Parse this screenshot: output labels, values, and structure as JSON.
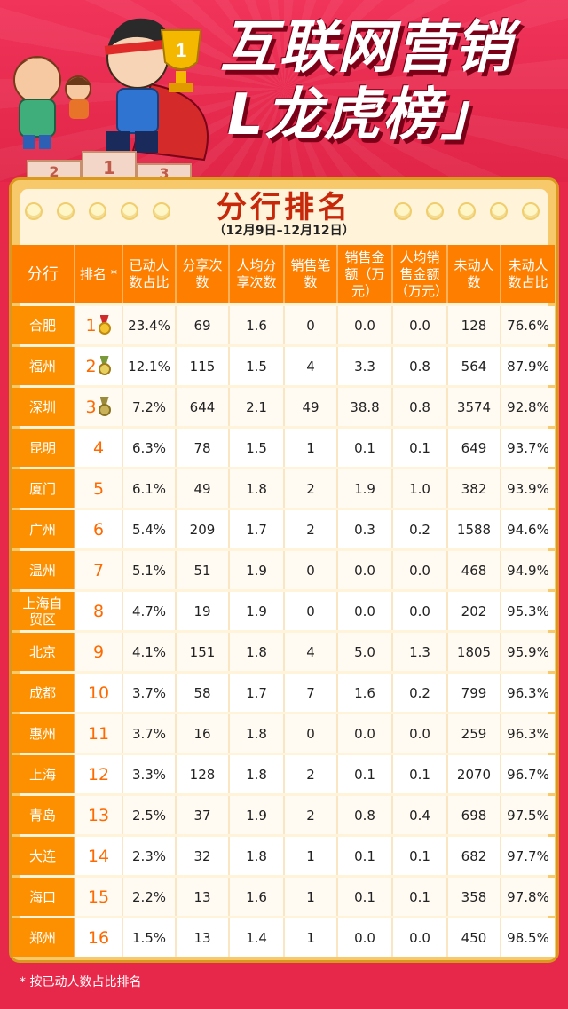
{
  "hero": {
    "title_line1": "互联网营销",
    "title_line2": "L龙虎榜」",
    "podium": [
      "2",
      "1",
      "3"
    ]
  },
  "section": {
    "title": "分行排名",
    "date_range": "（12月9日–12月12日）"
  },
  "table": {
    "headers": {
      "branch": "分行",
      "rank": "排名 *",
      "active_ratio": "已动人数占比",
      "shares": "分享次数",
      "avg_shares": "人均分享次数",
      "sales_count": "销售笔数",
      "sales_amount": "销售金额（万元）",
      "avg_sales": "人均销售金额（万元）",
      "inactive": "未动人数",
      "inactive_ratio": "未动人数占比"
    },
    "rows": [
      {
        "branch": "合肥",
        "rank": "1",
        "medal": "gold",
        "active_ratio": "23.4%",
        "shares": "69",
        "avg_shares": "1.6",
        "sales_count": "0",
        "sales_amount": "0.0",
        "avg_sales": "0.0",
        "inactive": "128",
        "inactive_ratio": "76.6%"
      },
      {
        "branch": "福州",
        "rank": "2",
        "medal": "silver",
        "active_ratio": "12.1%",
        "shares": "115",
        "avg_shares": "1.5",
        "sales_count": "4",
        "sales_amount": "3.3",
        "avg_sales": "0.8",
        "inactive": "564",
        "inactive_ratio": "87.9%"
      },
      {
        "branch": "深圳",
        "rank": "3",
        "medal": "bronze",
        "active_ratio": "7.2%",
        "shares": "644",
        "avg_shares": "2.1",
        "sales_count": "49",
        "sales_amount": "38.8",
        "avg_sales": "0.8",
        "inactive": "3574",
        "inactive_ratio": "92.8%"
      },
      {
        "branch": "昆明",
        "rank": "4",
        "medal": "",
        "active_ratio": "6.3%",
        "shares": "78",
        "avg_shares": "1.5",
        "sales_count": "1",
        "sales_amount": "0.1",
        "avg_sales": "0.1",
        "inactive": "649",
        "inactive_ratio": "93.7%"
      },
      {
        "branch": "厦门",
        "rank": "5",
        "medal": "",
        "active_ratio": "6.1%",
        "shares": "49",
        "avg_shares": "1.8",
        "sales_count": "2",
        "sales_amount": "1.9",
        "avg_sales": "1.0",
        "inactive": "382",
        "inactive_ratio": "93.9%"
      },
      {
        "branch": "广州",
        "rank": "6",
        "medal": "",
        "active_ratio": "5.4%",
        "shares": "209",
        "avg_shares": "1.7",
        "sales_count": "2",
        "sales_amount": "0.3",
        "avg_sales": "0.2",
        "inactive": "1588",
        "inactive_ratio": "94.6%"
      },
      {
        "branch": "温州",
        "rank": "7",
        "medal": "",
        "active_ratio": "5.1%",
        "shares": "51",
        "avg_shares": "1.9",
        "sales_count": "0",
        "sales_amount": "0.0",
        "avg_sales": "0.0",
        "inactive": "468",
        "inactive_ratio": "94.9%"
      },
      {
        "branch": "上海自贸区",
        "rank": "8",
        "medal": "",
        "active_ratio": "4.7%",
        "shares": "19",
        "avg_shares": "1.9",
        "sales_count": "0",
        "sales_amount": "0.0",
        "avg_sales": "0.0",
        "inactive": "202",
        "inactive_ratio": "95.3%"
      },
      {
        "branch": "北京",
        "rank": "9",
        "medal": "",
        "active_ratio": "4.1%",
        "shares": "151",
        "avg_shares": "1.8",
        "sales_count": "4",
        "sales_amount": "5.0",
        "avg_sales": "1.3",
        "inactive": "1805",
        "inactive_ratio": "95.9%"
      },
      {
        "branch": "成都",
        "rank": "10",
        "medal": "",
        "active_ratio": "3.7%",
        "shares": "58",
        "avg_shares": "1.7",
        "sales_count": "7",
        "sales_amount": "1.6",
        "avg_sales": "0.2",
        "inactive": "799",
        "inactive_ratio": "96.3%"
      },
      {
        "branch": "惠州",
        "rank": "11",
        "medal": "",
        "active_ratio": "3.7%",
        "shares": "16",
        "avg_shares": "1.8",
        "sales_count": "0",
        "sales_amount": "0.0",
        "avg_sales": "0.0",
        "inactive": "259",
        "inactive_ratio": "96.3%"
      },
      {
        "branch": "上海",
        "rank": "12",
        "medal": "",
        "active_ratio": "3.3%",
        "shares": "128",
        "avg_shares": "1.8",
        "sales_count": "2",
        "sales_amount": "0.1",
        "avg_sales": "0.1",
        "inactive": "2070",
        "inactive_ratio": "96.7%"
      },
      {
        "branch": "青岛",
        "rank": "13",
        "medal": "",
        "active_ratio": "2.5%",
        "shares": "37",
        "avg_shares": "1.9",
        "sales_count": "2",
        "sales_amount": "0.8",
        "avg_sales": "0.4",
        "inactive": "698",
        "inactive_ratio": "97.5%"
      },
      {
        "branch": "大连",
        "rank": "14",
        "medal": "",
        "active_ratio": "2.3%",
        "shares": "32",
        "avg_shares": "1.8",
        "sales_count": "1",
        "sales_amount": "0.1",
        "avg_sales": "0.1",
        "inactive": "682",
        "inactive_ratio": "97.7%"
      },
      {
        "branch": "海口",
        "rank": "15",
        "medal": "",
        "active_ratio": "2.2%",
        "shares": "13",
        "avg_shares": "1.6",
        "sales_count": "1",
        "sales_amount": "0.1",
        "avg_sales": "0.1",
        "inactive": "358",
        "inactive_ratio": "97.8%"
      },
      {
        "branch": "郑州",
        "rank": "16",
        "medal": "",
        "active_ratio": "1.5%",
        "shares": "13",
        "avg_shares": "1.4",
        "sales_count": "1",
        "sales_amount": "0.0",
        "avg_sales": "0.0",
        "inactive": "450",
        "inactive_ratio": "98.5%"
      }
    ]
  },
  "footnote": "* 按已动人数占比排名",
  "colors": {
    "background": "#e8284a",
    "header_orange": "#fe7f00",
    "branch_orange": "#fd9000",
    "title_red": "#c8280a",
    "rank_orange": "#ff6a00"
  }
}
